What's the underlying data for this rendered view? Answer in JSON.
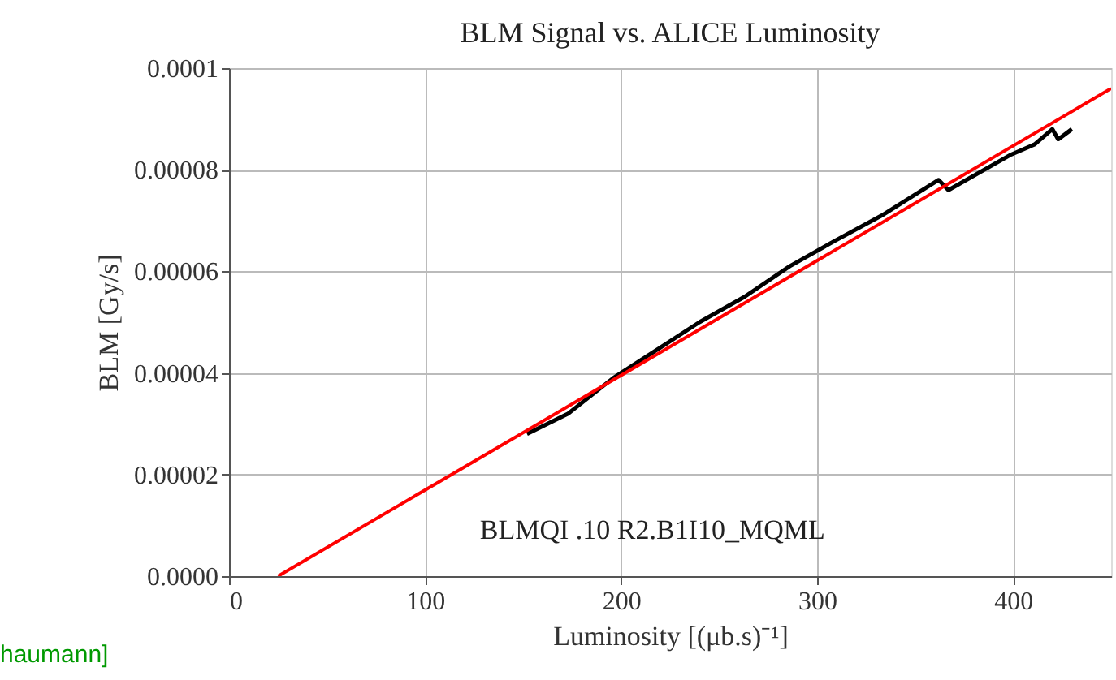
{
  "chart_data": {
    "type": "line",
    "title": "BLM Signal vs. ALICE Luminosity",
    "xlabel": "Luminosity [(μb.s)⁻¹]",
    "ylabel": "BLM [Gy/s]",
    "series": [
      {
        "color": "#000000",
        "x": [
          152,
          173,
          196,
          220,
          240,
          263,
          286,
          309,
          333,
          362,
          367,
          399,
          411,
          420,
          423,
          430
        ],
        "values": [
          2.8e-05,
          3.2e-05,
          3.9e-05,
          4.5e-05,
          5e-05,
          5.5e-05,
          6.1e-05,
          6.6e-05,
          7.1e-05,
          7.8e-05,
          7.6e-05,
          8.3e-05,
          8.5e-05,
          8.8e-05,
          8.6e-05,
          8.8e-05
        ]
      },
      {
        "color": "#ff0000",
        "x": [
          25,
          450
        ],
        "values": [
          0,
          9.6e-05
        ]
      }
    ],
    "xlim": [
      0,
      450
    ],
    "xticks": [
      0,
      100,
      200,
      300,
      400
    ],
    "ylim": [
      0,
      0.0001
    ],
    "yticks": [
      {
        "value": 0,
        "label": "0.0000"
      },
      {
        "value": 2e-05,
        "label": "0.00002"
      },
      {
        "value": 4e-05,
        "label": "0.00004"
      },
      {
        "value": 6e-05,
        "label": "0.00006"
      },
      {
        "value": 8e-05,
        "label": "0.00008"
      },
      {
        "value": 0.0001,
        "label": "0.0001"
      }
    ],
    "grid": true,
    "marker": "none",
    "line_style": "solid",
    "legend": false,
    "annotations": [
      "BLMQI .10 R2.B1I10_MQML",
      "haumann]"
    ]
  }
}
